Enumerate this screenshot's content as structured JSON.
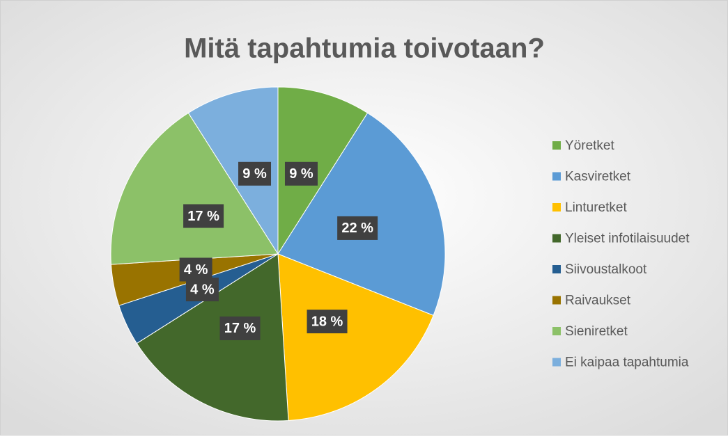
{
  "chart_data": {
    "type": "pie",
    "title": "Mitä tapahtumia toivotaan?",
    "categories": [
      "Yöretket",
      "Kasviretket",
      "Linturetket",
      "Yleiset infotilaisuudet",
      "Siivoustalkoot",
      "Raivaukset",
      "Sieniretket",
      "Ei kaipaa tapahtumia"
    ],
    "values": [
      9,
      22,
      18,
      17,
      4,
      4,
      17,
      9
    ],
    "value_labels": [
      "9 %",
      "22 %",
      "18 %",
      "17 %",
      "4 %",
      "4 %",
      "17 %",
      "9 %"
    ],
    "colors": [
      "#70ad47",
      "#5b9bd5",
      "#ffc000",
      "#43682b",
      "#255e91",
      "#997300",
      "#8cc168",
      "#7cafdd"
    ],
    "legend": "right"
  }
}
